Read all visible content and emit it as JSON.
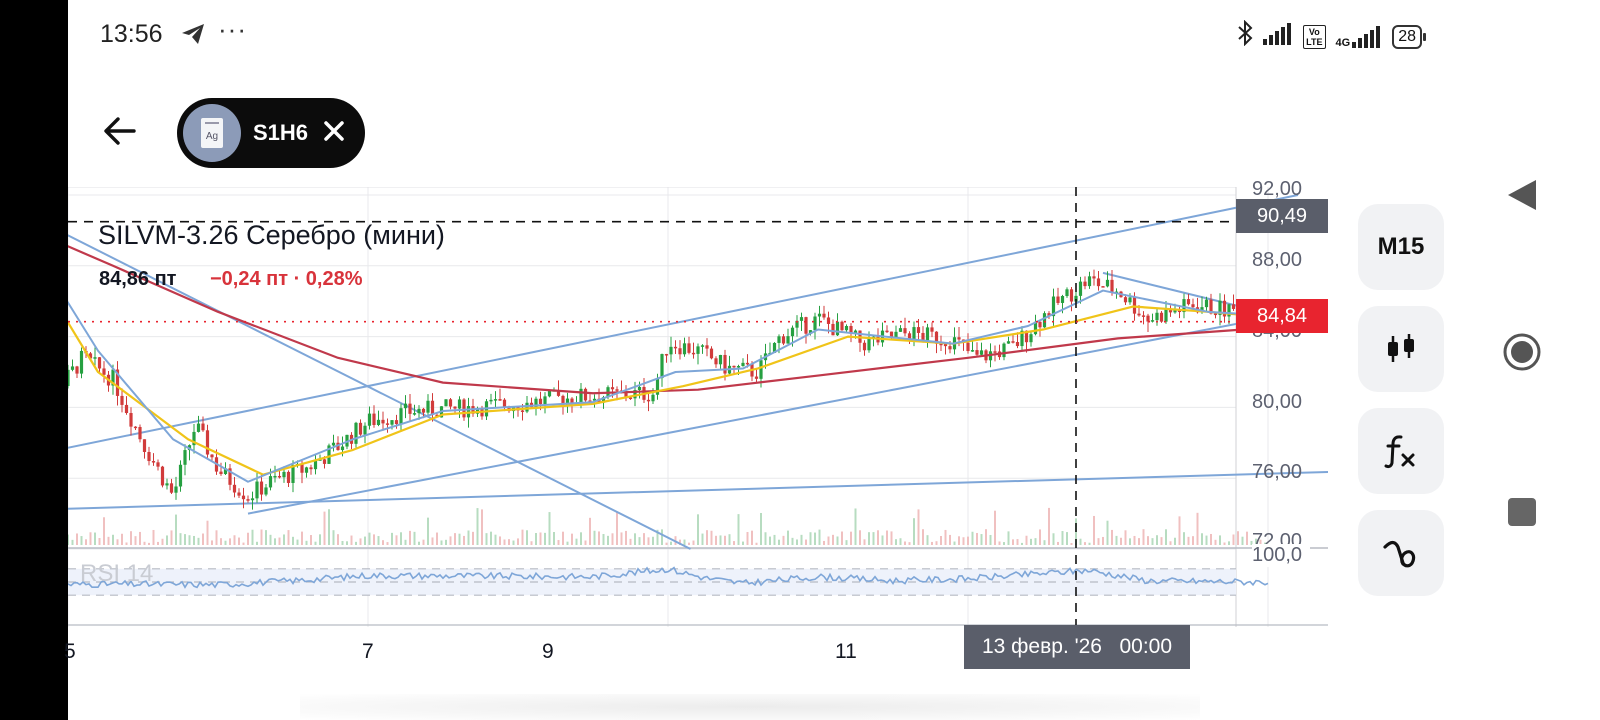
{
  "status_bar": {
    "time": "13:56",
    "more": "···",
    "volte_line1": "Vo",
    "volte_line2": "LTE",
    "network": "4G",
    "battery": "28",
    "icons": [
      "telegram-send-icon",
      "bluetooth-icon",
      "signal-icon",
      "volte-icon",
      "4g-signal-icon",
      "battery-icon"
    ]
  },
  "header": {
    "ticker": "S1H6",
    "avatar_text": "Ag",
    "icons": [
      "back-arrow-icon",
      "close-icon"
    ]
  },
  "symbol": {
    "title": "SILVM-3.26 Серебро (мини)",
    "price": "84,86 пт",
    "change": "−0,24 пт · 0,28%"
  },
  "price_axis": {
    "labels": [
      "92,00",
      "88,00",
      "84,00",
      "80,00",
      "76,00",
      "72,00"
    ],
    "crosshair_value": "90,49",
    "last_value": "84,84"
  },
  "rsi": {
    "label": "RSI 14",
    "top_value": "100,0"
  },
  "time_axis": {
    "labels": [
      "5",
      "7",
      "9",
      "11"
    ],
    "crosshair_time": "13 февр. '26   00:00"
  },
  "toolbar": {
    "timeframe": "M15",
    "icons": [
      "candlestick-icon",
      "indicators-fx-icon",
      "drawing-tool-icon"
    ]
  },
  "nav": {
    "icons": [
      "nav-back-icon",
      "nav-home-icon",
      "nav-recents-icon"
    ]
  },
  "colors": {
    "red": "#d8333b",
    "trend_line": "#7ea6d8",
    "ma_yellow": "#f0c419",
    "ma_red": "#c0394b",
    "ma_blue": "#7ea6d8",
    "candle_up": "#26a041",
    "candle_down": "#d13b3b",
    "crosshair_box": "#5a5e6a"
  },
  "chart_data": {
    "type": "candlestick",
    "instrument": "SILVM-3.26",
    "timeframe": "M15",
    "ylim": [
      72,
      92
    ],
    "x_ticks": [
      "5",
      "7",
      "9",
      "11"
    ],
    "price_path": [
      {
        "x": 4.7,
        "y": 90.0
      },
      {
        "x": 4.9,
        "y": 80.6
      },
      {
        "x": 5.1,
        "y": 82.8
      },
      {
        "x": 5.3,
        "y": 81.6
      },
      {
        "x": 5.5,
        "y": 78.0
      },
      {
        "x": 5.7,
        "y": 75.0
      },
      {
        "x": 5.85,
        "y": 79.0
      },
      {
        "x": 6.0,
        "y": 76.5
      },
      {
        "x": 6.2,
        "y": 75.0
      },
      {
        "x": 6.35,
        "y": 75.8
      },
      {
        "x": 6.6,
        "y": 76.6
      },
      {
        "x": 6.8,
        "y": 77.8
      },
      {
        "x": 7.0,
        "y": 79.2
      },
      {
        "x": 7.3,
        "y": 79.8
      },
      {
        "x": 7.7,
        "y": 80.0
      },
      {
        "x": 8.0,
        "y": 80.2
      },
      {
        "x": 8.4,
        "y": 80.6
      },
      {
        "x": 8.9,
        "y": 80.8
      },
      {
        "x": 9.0,
        "y": 83.7
      },
      {
        "x": 9.2,
        "y": 83.2
      },
      {
        "x": 9.4,
        "y": 82.2
      },
      {
        "x": 9.6,
        "y": 82.0
      },
      {
        "x": 9.75,
        "y": 84.0
      },
      {
        "x": 10.0,
        "y": 85.0
      },
      {
        "x": 10.3,
        "y": 83.6
      },
      {
        "x": 10.6,
        "y": 84.2
      },
      {
        "x": 10.9,
        "y": 83.8
      },
      {
        "x": 11.05,
        "y": 82.8
      },
      {
        "x": 11.3,
        "y": 83.4
      },
      {
        "x": 11.55,
        "y": 85.6
      },
      {
        "x": 11.8,
        "y": 87.2
      },
      {
        "x": 12.0,
        "y": 86.6
      },
      {
        "x": 12.2,
        "y": 85.0
      },
      {
        "x": 12.5,
        "y": 85.8
      },
      {
        "x": 12.8,
        "y": 85.4
      },
      {
        "x": 13.0,
        "y": 84.9
      }
    ],
    "ma_yellow": [
      {
        "x": 4.7,
        "y": 89.0
      },
      {
        "x": 5.2,
        "y": 82.0
      },
      {
        "x": 5.8,
        "y": 78.2
      },
      {
        "x": 6.3,
        "y": 76.2
      },
      {
        "x": 6.9,
        "y": 77.6
      },
      {
        "x": 7.5,
        "y": 79.6
      },
      {
        "x": 8.5,
        "y": 80.2
      },
      {
        "x": 9.1,
        "y": 81.2
      },
      {
        "x": 9.6,
        "y": 82.2
      },
      {
        "x": 10.2,
        "y": 84.0
      },
      {
        "x": 10.9,
        "y": 83.6
      },
      {
        "x": 11.5,
        "y": 84.4
      },
      {
        "x": 12.1,
        "y": 85.7
      },
      {
        "x": 12.6,
        "y": 85.4
      },
      {
        "x": 13.0,
        "y": 85.1
      }
    ],
    "ma_blue": [
      {
        "x": 4.7,
        "y": 90.0
      },
      {
        "x": 5.2,
        "y": 83.2
      },
      {
        "x": 5.7,
        "y": 78.2
      },
      {
        "x": 6.2,
        "y": 75.8
      },
      {
        "x": 6.9,
        "y": 78.2
      },
      {
        "x": 7.5,
        "y": 79.8
      },
      {
        "x": 8.5,
        "y": 80.3
      },
      {
        "x": 9.05,
        "y": 82.0
      },
      {
        "x": 9.5,
        "y": 82.2
      },
      {
        "x": 10.0,
        "y": 84.4
      },
      {
        "x": 10.9,
        "y": 83.6
      },
      {
        "x": 11.4,
        "y": 84.6
      },
      {
        "x": 11.9,
        "y": 86.6
      },
      {
        "x": 12.6,
        "y": 85.4
      },
      {
        "x": 13.0,
        "y": 85.2
      }
    ],
    "ma_red": [
      {
        "x": 4.7,
        "y": 90.2
      },
      {
        "x": 5.3,
        "y": 88.0
      },
      {
        "x": 6.0,
        "y": 85.4
      },
      {
        "x": 6.8,
        "y": 82.8
      },
      {
        "x": 7.5,
        "y": 81.4
      },
      {
        "x": 8.5,
        "y": 80.8
      },
      {
        "x": 9.2,
        "y": 81.0
      },
      {
        "x": 10.0,
        "y": 81.8
      },
      {
        "x": 11.0,
        "y": 82.8
      },
      {
        "x": 12.0,
        "y": 83.9
      },
      {
        "x": 13.0,
        "y": 84.5
      }
    ],
    "trend_lines": [
      {
        "x1": 4.7,
        "y1": 77.2,
        "x2": 13.2,
        "y2": 92.0
      },
      {
        "x1": 6.2,
        "y1": 74.0,
        "x2": 13.7,
        "y2": 86.2
      },
      {
        "x1": 4.7,
        "y1": 74.2,
        "x2": 14.0,
        "y2": 76.5
      },
      {
        "x1": 4.7,
        "y1": 91.0,
        "x2": 9.15,
        "y2": 72.0
      },
      {
        "x1": 11.9,
        "y1": 87.6,
        "x2": 13.2,
        "y2": 84.9
      }
    ],
    "last_price": 84.84,
    "crosshair": {
      "price": 90.49,
      "time": "13 февр. '26 00:00"
    },
    "rsi_period": 14,
    "rsi_ylim": [
      0,
      100
    ],
    "rsi_values": [
      {
        "x": 4.7,
        "y": 46
      },
      {
        "x": 5.3,
        "y": 47
      },
      {
        "x": 6.0,
        "y": 46
      },
      {
        "x": 6.5,
        "y": 52
      },
      {
        "x": 7.0,
        "y": 60
      },
      {
        "x": 8.5,
        "y": 58
      },
      {
        "x": 9.0,
        "y": 70
      },
      {
        "x": 9.25,
        "y": 56
      },
      {
        "x": 9.5,
        "y": 48
      },
      {
        "x": 10.0,
        "y": 58
      },
      {
        "x": 10.5,
        "y": 52
      },
      {
        "x": 11.0,
        "y": 55
      },
      {
        "x": 11.8,
        "y": 68
      },
      {
        "x": 12.2,
        "y": 52
      },
      {
        "x": 13.0,
        "y": 50
      }
    ]
  }
}
